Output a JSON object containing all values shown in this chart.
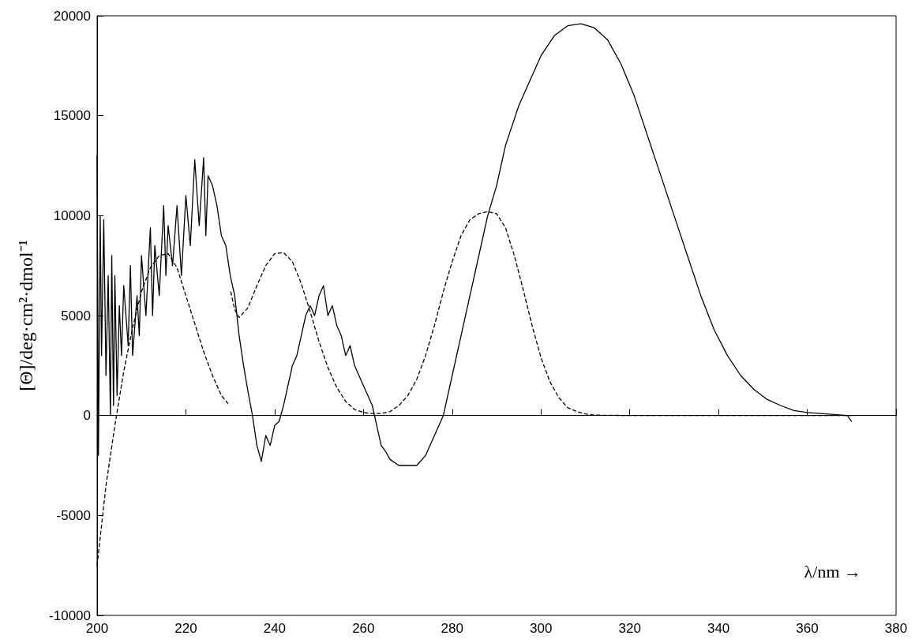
{
  "chart_data": {
    "type": "line",
    "xlabel": "λ/nm →",
    "ylabel": "[Θ]/deg·cm²·dmol⁻¹",
    "xlim": [
      200,
      380
    ],
    "xticks": [
      200,
      220,
      240,
      260,
      280,
      300,
      320,
      340,
      360,
      380
    ],
    "ylim": [
      -10000,
      20000
    ],
    "yticks": [
      -10000,
      -5000,
      0,
      5000,
      10000,
      15000,
      20000
    ],
    "grid": false,
    "marker": "none",
    "ref_lines": [
      {
        "axis": "y",
        "value": 0,
        "color": "#000000",
        "line_style": "dotted"
      }
    ],
    "series": [
      {
        "color": "#000000",
        "line_style": "solid",
        "x": [
          200,
          200.3,
          200.7,
          201,
          201.5,
          202,
          202.5,
          203,
          203.3,
          203.7,
          204,
          204.5,
          205,
          205.5,
          206,
          207,
          207.5,
          208,
          209,
          209.5,
          210,
          211,
          212,
          212.5,
          213,
          214,
          215,
          215.5,
          216,
          217,
          218,
          219,
          220,
          221,
          222,
          223,
          224,
          224.5,
          225,
          226,
          227,
          228,
          229,
          230,
          231,
          232,
          233,
          234,
          235,
          236,
          237,
          238,
          239,
          240,
          241,
          242,
          243,
          244,
          245,
          246,
          247,
          248,
          249,
          250,
          251,
          252,
          253,
          254,
          255,
          256,
          257,
          258,
          259,
          260,
          261,
          262,
          263,
          264,
          265,
          266,
          268,
          270,
          272,
          274,
          276,
          278,
          280,
          282,
          284,
          286,
          288,
          290,
          292,
          295,
          298,
          300,
          303,
          306,
          309,
          312,
          315,
          318,
          321,
          324,
          327,
          330,
          333,
          336,
          339,
          342,
          345,
          348,
          351,
          354,
          357,
          360,
          363,
          366,
          369,
          370
        ],
        "values": [
          13000,
          -2000,
          10000,
          3000,
          9800,
          2000,
          7000,
          0,
          8000,
          500,
          7000,
          1000,
          5500,
          3000,
          6500,
          3500,
          7500,
          3000,
          6000,
          4000,
          8000,
          5000,
          9400,
          5000,
          8500,
          6000,
          10500,
          7000,
          9500,
          7500,
          10500,
          7000,
          11000,
          8500,
          12800,
          9500,
          12900,
          9000,
          12000,
          11500,
          10500,
          9000,
          8500,
          7000,
          6000,
          4000,
          2500,
          1200,
          0,
          -1500,
          -2300,
          -1000,
          -1500,
          -500,
          -300,
          500,
          1500,
          2500,
          3000,
          4000,
          5000,
          5500,
          5000,
          6000,
          6500,
          5000,
          5500,
          4500,
          4000,
          3000,
          3500,
          2500,
          2000,
          1500,
          1000,
          500,
          -500,
          -1500,
          -1800,
          -2200,
          -2500,
          -2500,
          -2500,
          -2000,
          -1000,
          0,
          2000,
          4000,
          6000,
          8000,
          10000,
          11500,
          13500,
          15500,
          17000,
          18000,
          19000,
          19500,
          19600,
          19400,
          18800,
          17600,
          16000,
          14000,
          12000,
          10000,
          8000,
          6000,
          4300,
          3000,
          2000,
          1300,
          800,
          500,
          250,
          150,
          100,
          50,
          0,
          -300
        ]
      },
      {
        "color": "#000000",
        "line_style": "dashed",
        "x": [
          200,
          202,
          204,
          206,
          208,
          210,
          212,
          214,
          216,
          218,
          220,
          222,
          224,
          226,
          228,
          229.5,
          230,
          230.1,
          231,
          232,
          234,
          236,
          238,
          240,
          242,
          244,
          246,
          248,
          250,
          252,
          254,
          256,
          258,
          260,
          262,
          264,
          266,
          268,
          270,
          272,
          274,
          276,
          278,
          280,
          282,
          284,
          286,
          288,
          290,
          292,
          294,
          296,
          298,
          300,
          302,
          304,
          306,
          308,
          310,
          312,
          320,
          370
        ],
        "values": [
          -7500,
          -3500,
          -500,
          2200,
          4400,
          6200,
          7400,
          8000,
          8100,
          7400,
          6000,
          4600,
          3200,
          2000,
          1000,
          600,
          null,
          6200,
          5300,
          4900,
          5400,
          6500,
          7500,
          8100,
          8150,
          7700,
          6600,
          5200,
          3700,
          2400,
          1400,
          700,
          300,
          150,
          100,
          100,
          200,
          500,
          1000,
          1800,
          3000,
          4500,
          6200,
          7700,
          9000,
          9800,
          10100,
          10200,
          10100,
          9400,
          8000,
          6300,
          4500,
          2900,
          1700,
          900,
          400,
          200,
          80,
          20,
          0,
          0
        ]
      }
    ]
  }
}
